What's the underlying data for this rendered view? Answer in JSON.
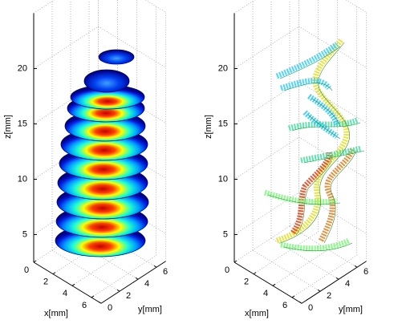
{
  "chart_data": [
    {
      "type": "volume3d",
      "xlabel": "x[mm]",
      "ylabel": "y[mm]",
      "zlabel": "z[mm]",
      "xlim": [
        0,
        7
      ],
      "ylim": [
        0,
        7
      ],
      "zlim": [
        2.5,
        25
      ],
      "xticks": [
        0,
        2,
        4,
        6
      ],
      "yticks": [
        0,
        2,
        4,
        6
      ],
      "zticks": [
        5,
        10,
        15,
        20
      ],
      "grid": true
    },
    {
      "type": "contour3d",
      "xlabel": "x[mm]",
      "ylabel": "y[mm]",
      "zlabel": "z[mm]",
      "xlim": [
        0,
        7
      ],
      "ylim": [
        0,
        7
      ],
      "zlim": [
        2.5,
        25
      ],
      "xticks": [
        0,
        2,
        4,
        6
      ],
      "yticks": [
        0,
        2,
        4,
        6
      ],
      "zticks": [
        5,
        10,
        15,
        20
      ],
      "grid": true
    }
  ]
}
